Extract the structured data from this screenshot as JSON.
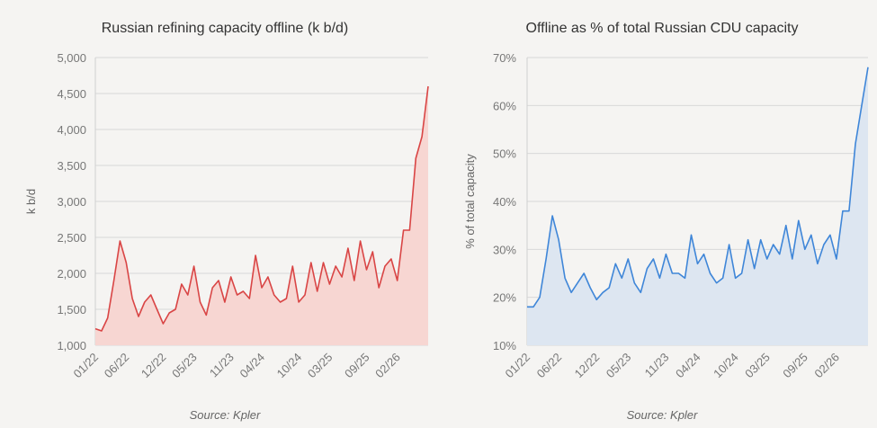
{
  "chart_data": [
    {
      "type": "area",
      "title": "Russian refining capacity offline (k b/d)",
      "ylabel": "k b/d",
      "xlabel": "",
      "source": "Source: Kpler",
      "ylim": [
        1000,
        5000
      ],
      "yticks": [
        "1,000",
        "1,500",
        "2,000",
        "2,500",
        "3,000",
        "3,500",
        "4,000",
        "4,500",
        "5,000"
      ],
      "ytick_values": [
        1000,
        1500,
        2000,
        2500,
        3000,
        3500,
        4000,
        4500,
        5000
      ],
      "xlim": [
        "2022-01",
        "2026-07"
      ],
      "xticks": [
        "01/22",
        "06/22",
        "12/22",
        "05/23",
        "11/23",
        "04/24",
        "10/24",
        "03/25",
        "09/25",
        "02/26"
      ],
      "xtick_dates": [
        "2022-01",
        "2022-06",
        "2022-12",
        "2023-05",
        "2023-11",
        "2024-04",
        "2024-10",
        "2025-03",
        "2025-09",
        "2026-02"
      ],
      "grid": true,
      "line_color": "#d94545",
      "fill_color": "#f7d6d2",
      "series": [
        {
          "x": [
            "2022-01",
            "2022-02",
            "2022-03",
            "2022-04",
            "2022-05",
            "2022-06",
            "2022-07",
            "2022-08",
            "2022-09",
            "2022-10",
            "2022-11",
            "2022-12",
            "2023-01",
            "2023-02",
            "2023-03",
            "2023-04",
            "2023-05",
            "2023-06",
            "2023-07",
            "2023-08",
            "2023-09",
            "2023-10",
            "2023-11",
            "2023-12",
            "2024-01",
            "2024-02",
            "2024-03",
            "2024-04",
            "2024-05",
            "2024-06",
            "2024-07",
            "2024-08",
            "2024-09",
            "2024-10",
            "2024-11",
            "2024-12",
            "2025-01",
            "2025-02",
            "2025-03",
            "2025-04",
            "2025-05",
            "2025-06",
            "2025-07",
            "2025-08",
            "2025-09",
            "2025-10",
            "2025-11",
            "2025-12",
            "2026-01",
            "2026-02",
            "2026-03",
            "2026-04",
            "2026-05",
            "2026-06",
            "2026-07"
          ],
          "values": [
            1230,
            1200,
            1380,
            1900,
            2450,
            2150,
            1650,
            1400,
            1600,
            1700,
            1500,
            1300,
            1450,
            1500,
            1850,
            1700,
            2100,
            1600,
            1420,
            1800,
            1900,
            1600,
            1950,
            1700,
            1750,
            1650,
            2250,
            1800,
            1950,
            1700,
            1600,
            1650,
            2100,
            1600,
            1700,
            2150,
            1750,
            2150,
            1850,
            2100,
            1950,
            2350,
            1900,
            2450,
            2050,
            2300,
            1800,
            2100,
            2200,
            1900,
            2600,
            2600,
            3600,
            3900,
            4600
          ]
        }
      ]
    },
    {
      "type": "area",
      "title": "Offline as % of total Russian CDU capacity",
      "ylabel": "% of total capacity",
      "xlabel": "",
      "source": "Source: Kpler",
      "ylim": [
        10,
        70
      ],
      "yticks": [
        "10%",
        "20%",
        "30%",
        "40%",
        "50%",
        "60%",
        "70%"
      ],
      "ytick_values": [
        10,
        20,
        30,
        40,
        50,
        60,
        70
      ],
      "xlim": [
        "2022-01",
        "2026-07"
      ],
      "xticks": [
        "01/22",
        "06/22",
        "12/22",
        "05/23",
        "11/23",
        "04/24",
        "10/24",
        "03/25",
        "09/25",
        "02/26"
      ],
      "xtick_dates": [
        "2022-01",
        "2022-06",
        "2022-12",
        "2023-05",
        "2023-11",
        "2024-04",
        "2024-10",
        "2025-03",
        "2025-09",
        "2026-02"
      ],
      "grid": true,
      "line_color": "#3f86d8",
      "fill_color": "#dde6f1",
      "series": [
        {
          "x": [
            "2022-01",
            "2022-02",
            "2022-03",
            "2022-04",
            "2022-05",
            "2022-06",
            "2022-07",
            "2022-08",
            "2022-09",
            "2022-10",
            "2022-11",
            "2022-12",
            "2023-01",
            "2023-02",
            "2023-03",
            "2023-04",
            "2023-05",
            "2023-06",
            "2023-07",
            "2023-08",
            "2023-09",
            "2023-10",
            "2023-11",
            "2023-12",
            "2024-01",
            "2024-02",
            "2024-03",
            "2024-04",
            "2024-05",
            "2024-06",
            "2024-07",
            "2024-08",
            "2024-09",
            "2024-10",
            "2024-11",
            "2024-12",
            "2025-01",
            "2025-02",
            "2025-03",
            "2025-04",
            "2025-05",
            "2025-06",
            "2025-07",
            "2025-08",
            "2025-09",
            "2025-10",
            "2025-11",
            "2025-12",
            "2026-01",
            "2026-02",
            "2026-03",
            "2026-04",
            "2026-05",
            "2026-06",
            "2026-07"
          ],
          "values": [
            18,
            18,
            20,
            28,
            37,
            32,
            24,
            21,
            23,
            25,
            22,
            19.5,
            21,
            22,
            27,
            24,
            28,
            23,
            21,
            26,
            28,
            24,
            29,
            25,
            25,
            24,
            33,
            27,
            29,
            25,
            23,
            24,
            31,
            24,
            25,
            32,
            26,
            32,
            28,
            31,
            29,
            35,
            28,
            36,
            30,
            33,
            27,
            31,
            33,
            28,
            38,
            38,
            52,
            60,
            68
          ]
        }
      ]
    }
  ]
}
